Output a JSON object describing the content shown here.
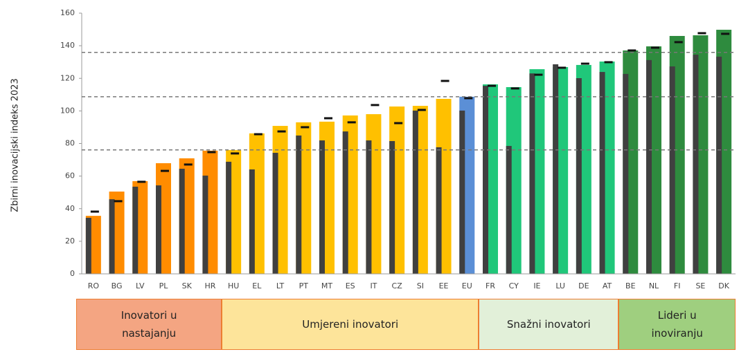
{
  "chart_data": {
    "type": "bar",
    "ylabel": "Zbirni inovacijski indeks 2023",
    "categories": [
      "RO",
      "BG",
      "LV",
      "PL",
      "SK",
      "HR",
      "HU",
      "EL",
      "LT",
      "PT",
      "MT",
      "ES",
      "IT",
      "CZ",
      "SI",
      "EE",
      "EU",
      "FR",
      "CY",
      "IE",
      "LU",
      "DE",
      "AT",
      "BE",
      "NL",
      "FI",
      "SE",
      "DK"
    ],
    "series": [
      {
        "colors": [
          "#ff8c00",
          "#ff8c00",
          "#ff8c00",
          "#ff8c00",
          "#ff8c00",
          "#ff8c00",
          "#ffc000",
          "#ffc000",
          "#ffc000",
          "#ffc000",
          "#ffc000",
          "#ffc000",
          "#ffc000",
          "#ffc000",
          "#ffc000",
          "#ffc000",
          "#5b8fd6",
          "#20c77a",
          "#20c77a",
          "#20c77a",
          "#20c77a",
          "#20c77a",
          "#20c77a",
          "#2e8b3e",
          "#2e8b3e",
          "#2e8b3e",
          "#2e8b3e",
          "#2e8b3e"
        ],
        "values": [
          35.6,
          50.5,
          56.9,
          67.9,
          70.9,
          75.6,
          76,
          86.2,
          90.8,
          93,
          93.4,
          97.2,
          98,
          102.7,
          103.1,
          107.4,
          108.7,
          116.3,
          114.6,
          125.6,
          126.9,
          128.2,
          130.3,
          137.1,
          139.6,
          146,
          146.4,
          149.8
        ]
      },
      {
        "color": "#404040",
        "values": [
          34.4,
          45.8,
          53.5,
          54.3,
          64.5,
          60.3,
          68.8,
          64.1,
          74.3,
          84.9,
          81.9,
          87.4,
          81.9,
          81.5,
          100.2,
          77.7,
          100.2,
          115.4,
          78.5,
          123,
          128.6,
          120.1,
          123.9,
          122.7,
          131.2,
          127.3,
          134.5,
          133.3
        ]
      },
      {
        "color": "#111111",
        "marker": "dash",
        "values": [
          38.2,
          44.6,
          56.5,
          63.2,
          67.1,
          74.7,
          73.9,
          85.7,
          87.4,
          90,
          95.5,
          93,
          103.6,
          92.5,
          100.6,
          118.4,
          107.8,
          115.4,
          113.8,
          122.2,
          126.5,
          129,
          129.9,
          137.1,
          138.8,
          142.2,
          147.7,
          147.3
        ]
      }
    ],
    "reference_lines": [
      76.1,
      108.7,
      135.9
    ],
    "ylim": [
      0,
      160
    ],
    "yticks": [
      0,
      20,
      40,
      60,
      80,
      100,
      120,
      140,
      160
    ],
    "grid": false,
    "groups": [
      {
        "lines": [
          "Inovatori u",
          "nastajanju"
        ],
        "color": "#f4a582",
        "border": "#ed7d31"
      },
      {
        "lines": [
          "Umjereni inovatori"
        ],
        "color": "#fde49a",
        "border": "#ed7d31"
      },
      {
        "lines": [
          "Snažni inovatori"
        ],
        "color": "#e2f0d9",
        "border": "#ed7d31"
      },
      {
        "lines": [
          "Lideri u",
          "inoviranju"
        ],
        "color": "#9fcf7f",
        "border": "#ed7d31"
      }
    ]
  }
}
